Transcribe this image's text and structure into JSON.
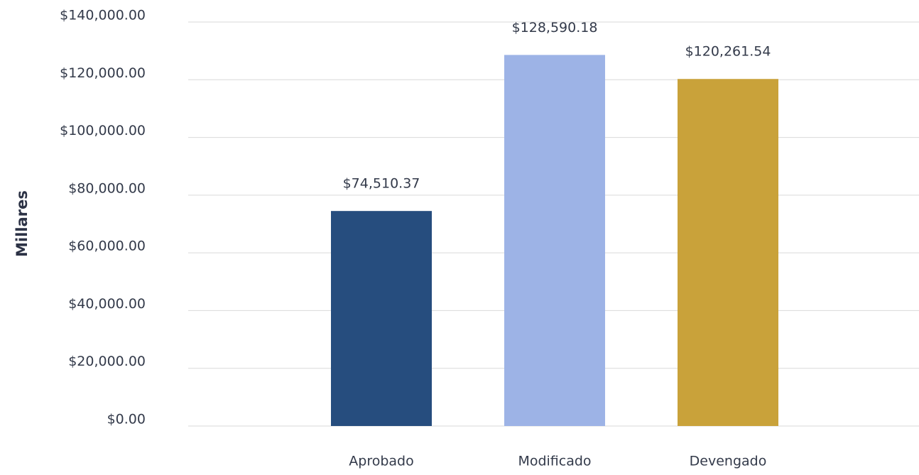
{
  "chart_data": {
    "type": "bar",
    "y_axis_label": "Millares",
    "categories": [
      "Aprobado",
      "Modificado",
      "Devengado"
    ],
    "values": [
      74510.37,
      128590.18,
      120261.54
    ],
    "value_labels": [
      "$74,510.37",
      "$128,590.18",
      "$120,261.54"
    ],
    "colors": [
      "#264d7e",
      "#9db3e6",
      "#c9a23a"
    ],
    "ylim": [
      0,
      140000
    ],
    "yticks": [
      {
        "value": 0,
        "label": "$0.00"
      },
      {
        "value": 20000,
        "label": "$20,000.00"
      },
      {
        "value": 40000,
        "label": "$40,000.00"
      },
      {
        "value": 60000,
        "label": "$60,000.00"
      },
      {
        "value": 80000,
        "label": "$80,000.00"
      },
      {
        "value": 100000,
        "label": "$100,000.00"
      },
      {
        "value": 120000,
        "label": "$120,000.00"
      },
      {
        "value": 140000,
        "label": "$140,000.00"
      }
    ],
    "grid": true
  }
}
